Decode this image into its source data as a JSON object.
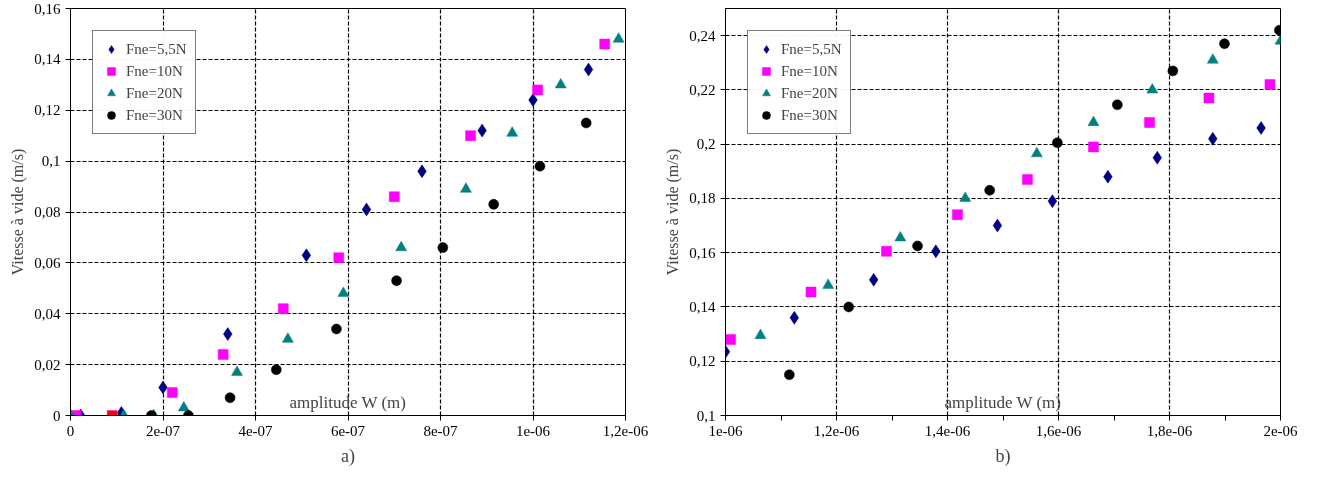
{
  "chart_data": [
    {
      "type": "scatter",
      "xlabel": "amplitude W (m)",
      "ylabel": "Vitesse à vide (m/s)",
      "annotations": [
        "a)"
      ],
      "xlim": [
        0,
        1.2e-06
      ],
      "xticks": [
        {
          "value": 0,
          "label": "0"
        },
        {
          "value": 2e-07,
          "label": "2e-07"
        },
        {
          "value": 4e-07,
          "label": "4e-07"
        },
        {
          "value": 6e-07,
          "label": "6e-07"
        },
        {
          "value": 8e-07,
          "label": "8e-07"
        },
        {
          "value": 1e-06,
          "label": "1e-06"
        },
        {
          "value": 1.2e-06,
          "label": "1,2e-06"
        }
      ],
      "ylim": [
        0,
        0.16
      ],
      "yticks": [
        {
          "value": 0,
          "label": "0"
        },
        {
          "value": 0.02,
          "label": "0,02"
        },
        {
          "value": 0.04,
          "label": "0,04"
        },
        {
          "value": 0.06,
          "label": "0,06"
        },
        {
          "value": 0.08,
          "label": "0,08"
        },
        {
          "value": 0.1,
          "label": "0,1"
        },
        {
          "value": 0.12,
          "label": "0,12"
        },
        {
          "value": 0.14,
          "label": "0,14"
        },
        {
          "value": 0.16,
          "label": "0,16"
        }
      ],
      "grid": true,
      "legend": "top left",
      "series": [
        {
          "name": "Fne=5,5N",
          "color": "#000080",
          "marker": "diamond",
          "x": [
            2.2e-08,
            1.1e-07,
            2e-07,
            3.4e-07,
            5.1e-07,
            6.4e-07,
            7.6e-07,
            8.9e-07,
            1e-06,
            1.12e-06
          ],
          "values": [
            0,
            0.001,
            0.011,
            0.032,
            0.063,
            0.081,
            0.096,
            0.112,
            0.124,
            0.136
          ]
        },
        {
          "name": "Fne=10N",
          "color": "#ff00ff",
          "colors": [
            "#ff00ff",
            "#ff0000",
            "#ff00ff",
            "#ff00ff",
            "#ff00ff",
            "#ff00ff",
            "#ff00ff",
            "#ff00ff",
            "#ff00ff",
            "#ff00ff"
          ],
          "marker": "square",
          "x": [
            1.2e-08,
            9e-08,
            2.2e-07,
            3.3e-07,
            4.6e-07,
            5.8e-07,
            7e-07,
            8.65e-07,
            1.01e-06,
            1.155e-06
          ],
          "values": [
            0,
            0,
            0.009,
            0.024,
            0.042,
            0.062,
            0.086,
            0.11,
            0.128,
            0.146
          ]
        },
        {
          "name": "Fne=20N",
          "color": "#008080",
          "marker": "triangle",
          "x": [
            0,
            1.15e-07,
            1.8e-07,
            2.45e-07,
            3.6e-07,
            4.7e-07,
            5.9e-07,
            7.15e-07,
            8.55e-07,
            9.55e-07,
            1.06e-06,
            1.185e-06
          ],
          "values": [
            0,
            0,
            0,
            0.003,
            0.017,
            0.03,
            0.048,
            0.066,
            0.089,
            0.111,
            0.13,
            0.148
          ]
        },
        {
          "name": "Fne=30N",
          "color": "#000000",
          "marker": "circle",
          "x": [
            1.75e-07,
            2.55e-07,
            3.45e-07,
            4.45e-07,
            5.75e-07,
            7.05e-07,
            8.05e-07,
            9.15e-07,
            1.015e-06,
            1.115e-06
          ],
          "values": [
            0,
            0,
            0.007,
            0.018,
            0.034,
            0.053,
            0.066,
            0.083,
            0.098,
            0.115
          ]
        }
      ]
    },
    {
      "type": "scatter",
      "xlabel": "amplitude W (m)",
      "ylabel": "Vitesse à vide (m/s)",
      "annotations": [
        "b)"
      ],
      "xlim": [
        1e-06,
        2e-06
      ],
      "xticks": [
        {
          "value": 1e-06,
          "label": "1e-06"
        },
        {
          "value": 1.1e-06,
          "label": null
        },
        {
          "value": 1.2e-06,
          "label": "1,2e-06"
        },
        {
          "value": 1.3e-06,
          "label": null
        },
        {
          "value": 1.4e-06,
          "label": "1,4e-06"
        },
        {
          "value": 1.5e-06,
          "label": null
        },
        {
          "value": 1.6e-06,
          "label": "1,6e-06"
        },
        {
          "value": 1.7e-06,
          "label": null
        },
        {
          "value": 1.8e-06,
          "label": "1,8e-06"
        },
        {
          "value": 1.9e-06,
          "label": null
        },
        {
          "value": 2e-06,
          "label": "2e-06"
        }
      ],
      "ylim": [
        0.1,
        0.25
      ],
      "yticks": [
        {
          "value": 0.1,
          "label": "0,1"
        },
        {
          "value": 0.12,
          "label": "0,12"
        },
        {
          "value": 0.14,
          "label": "0,14"
        },
        {
          "value": 0.16,
          "label": "0,16"
        },
        {
          "value": 0.18,
          "label": "0,18"
        },
        {
          "value": 0.2,
          "label": "0,2"
        },
        {
          "value": 0.22,
          "label": "0,22"
        },
        {
          "value": 0.24,
          "label": "0,24"
        }
      ],
      "grid": true,
      "legend": "top left",
      "series": [
        {
          "name": "Fne=5,5N",
          "color": "#000080",
          "marker": "diamond",
          "x": [
            1e-06,
            1.124e-06,
            1.267e-06,
            1.379e-06,
            1.49e-06,
            1.589e-06,
            1.689e-06,
            1.778e-06,
            1.878e-06,
            1.965e-06
          ],
          "values": [
            0.1235,
            0.136,
            0.15,
            0.1605,
            0.17,
            0.179,
            0.188,
            0.195,
            0.202,
            0.206
          ]
        },
        {
          "name": "Fne=10N",
          "color": "#ff00ff",
          "marker": "square",
          "x": [
            1.009e-06,
            1.154e-06,
            1.29e-06,
            1.418e-06,
            1.544e-06,
            1.663e-06,
            1.764e-06,
            1.871e-06,
            1.981e-06
          ],
          "values": [
            0.128,
            0.1455,
            0.1605,
            0.174,
            0.187,
            0.199,
            0.208,
            0.217,
            0.222
          ]
        },
        {
          "name": "Fne=20N",
          "color": "#008080",
          "marker": "triangle",
          "x": [
            1.063e-06,
            1.185e-06,
            1.315e-06,
            1.432e-06,
            1.561e-06,
            1.663e-06,
            1.769e-06,
            1.878e-06,
            2e-06
          ],
          "values": [
            0.1295,
            0.148,
            0.1655,
            0.18,
            0.1965,
            0.208,
            0.22,
            0.231,
            0.238
          ]
        },
        {
          "name": "Fne=30N",
          "color": "#000000",
          "marker": "circle",
          "x": [
            1.115e-06,
            1.222e-06,
            1.346e-06,
            1.476e-06,
            1.598e-06,
            1.706e-06,
            1.806e-06,
            1.899e-06,
            1.998e-06
          ],
          "values": [
            0.115,
            0.14,
            0.1625,
            0.183,
            0.2005,
            0.2145,
            0.227,
            0.237,
            0.242
          ]
        }
      ]
    }
  ]
}
